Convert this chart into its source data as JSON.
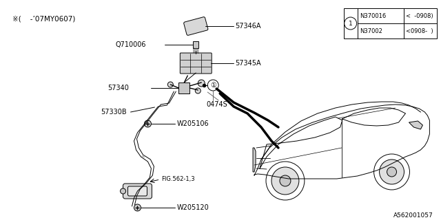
{
  "bg_color": "#ffffff",
  "fig_width": 6.4,
  "fig_height": 3.2,
  "dpi": 100,
  "watermark": "A562001057",
  "note_text": "※(    -’07MY0607)",
  "table": {
    "circle_label": "1",
    "rows": [
      {
        "part": "N370016",
        "range": "<  -0908)"
      },
      {
        "part": "N37002",
        "range": "<0908-  )"
      }
    ]
  }
}
